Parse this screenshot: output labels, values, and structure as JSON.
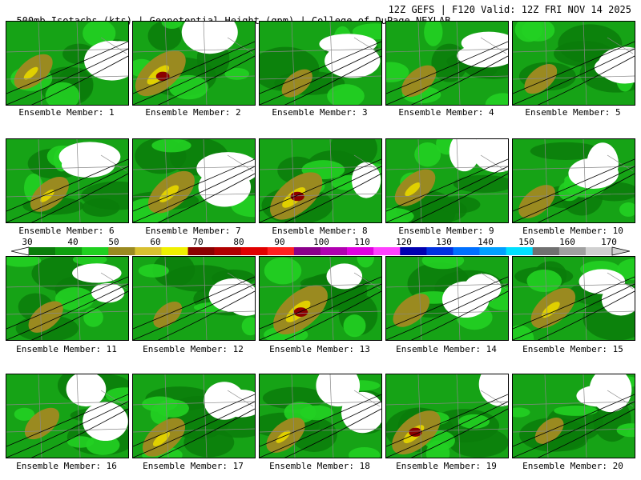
{
  "header": {
    "left": "500mb Isotachs (kts) | Geopotential Height (gpm) | College of DuPage NEXLAB",
    "right": "12Z GEFS | F120 Valid: 12Z FRI NOV 14 2025"
  },
  "caption_prefix": "Ensemble Member:",
  "members": [
    {
      "label": "Ensemble Member: 1",
      "intensity": 0.55
    },
    {
      "label": "Ensemble Member: 2",
      "intensity": 0.85
    },
    {
      "label": "Ensemble Member: 3",
      "intensity": 0.35
    },
    {
      "label": "Ensemble Member: 4",
      "intensity": 0.45
    },
    {
      "label": "Ensemble Member: 5",
      "intensity": 0.4
    },
    {
      "label": "Ensemble Member: 6",
      "intensity": 0.55
    },
    {
      "label": "Ensemble Member: 7",
      "intensity": 0.75
    },
    {
      "label": "Ensemble Member: 8",
      "intensity": 0.9
    },
    {
      "label": "Ensemble Member: 9",
      "intensity": 0.6
    },
    {
      "label": "Ensemble Member: 10",
      "intensity": 0.5
    },
    {
      "label": "Ensemble Member: 11",
      "intensity": 0.45
    },
    {
      "label": "Ensemble Member: 12",
      "intensity": 0.3
    },
    {
      "label": "Ensemble Member: 13",
      "intensity": 0.95
    },
    {
      "label": "Ensemble Member: 14",
      "intensity": 0.5
    },
    {
      "label": "Ensemble Member: 15",
      "intensity": 0.7
    },
    {
      "label": "Ensemble Member: 16",
      "intensity": 0.45
    },
    {
      "label": "Ensemble Member: 17",
      "intensity": 0.65
    },
    {
      "label": "Ensemble Member: 18",
      "intensity": 0.55
    },
    {
      "label": "Ensemble Member: 19",
      "intensity": 0.8
    },
    {
      "label": "Ensemble Member: 20",
      "intensity": 0.3
    }
  ],
  "colorbar": {
    "labels": [
      "30",
      "40",
      "50",
      "60",
      "70",
      "80",
      "90",
      "100",
      "110",
      "120",
      "130",
      "140",
      "150",
      "160",
      "170"
    ],
    "colors": [
      "#0a7d0a",
      "#0fa00f",
      "#1fd01f",
      "#9a8a20",
      "#d8c030",
      "#f0f000",
      "#8b0000",
      "#b00000",
      "#e00000",
      "#ff2020",
      "#8a008a",
      "#b000b0",
      "#e000e0",
      "#ff40ff",
      "#0000b0",
      "#0030e0",
      "#0070ff",
      "#00a0ff",
      "#00e0ff",
      "#707070",
      "#a0a0a0",
      "#d0d0d0"
    ]
  },
  "palette": {
    "dark_green": "#0a7d0a",
    "green": "#16a316",
    "bright_green": "#22d022",
    "olive": "#9a8a20",
    "yellow": "#e0d000",
    "dark_red": "#8b0000",
    "border": "#888888",
    "height_contour": "#000000"
  }
}
